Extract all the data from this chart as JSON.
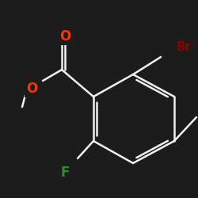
{
  "bg_color": "#1c1c1c",
  "bond_color": "#f0f0f0",
  "atom_colors": {
    "Br": "#8b0000",
    "O": "#ff3300",
    "F": "#2d8b2d",
    "C": "#f0f0f0"
  },
  "bond_lw": 1.8,
  "font_size_atom": 11,
  "font_size_br": 10
}
